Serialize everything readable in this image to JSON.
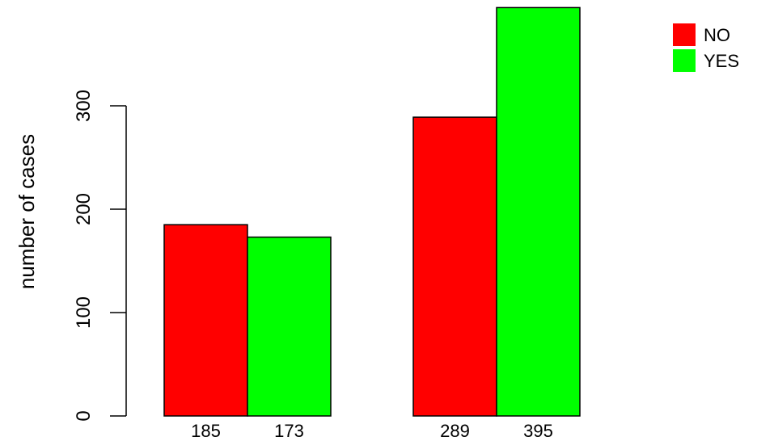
{
  "chart_data": {
    "type": "bar",
    "title": "",
    "xlabel": "",
    "ylabel": "number of cases",
    "ylim": [
      0,
      400
    ],
    "yticks": [
      0,
      100,
      200,
      300
    ],
    "grid": false,
    "legend_position": "top-right",
    "groups": [
      {
        "bars": [
          {
            "series": "NO",
            "value": 185,
            "label": "185"
          },
          {
            "series": "YES",
            "value": 173,
            "label": "173"
          }
        ]
      },
      {
        "bars": [
          {
            "series": "NO",
            "value": 289,
            "label": "289"
          },
          {
            "series": "YES",
            "value": 395,
            "label": "395"
          }
        ]
      }
    ],
    "series": [
      {
        "name": "NO",
        "color": "#ff0000"
      },
      {
        "name": "YES",
        "color": "#00ff00"
      }
    ]
  }
}
